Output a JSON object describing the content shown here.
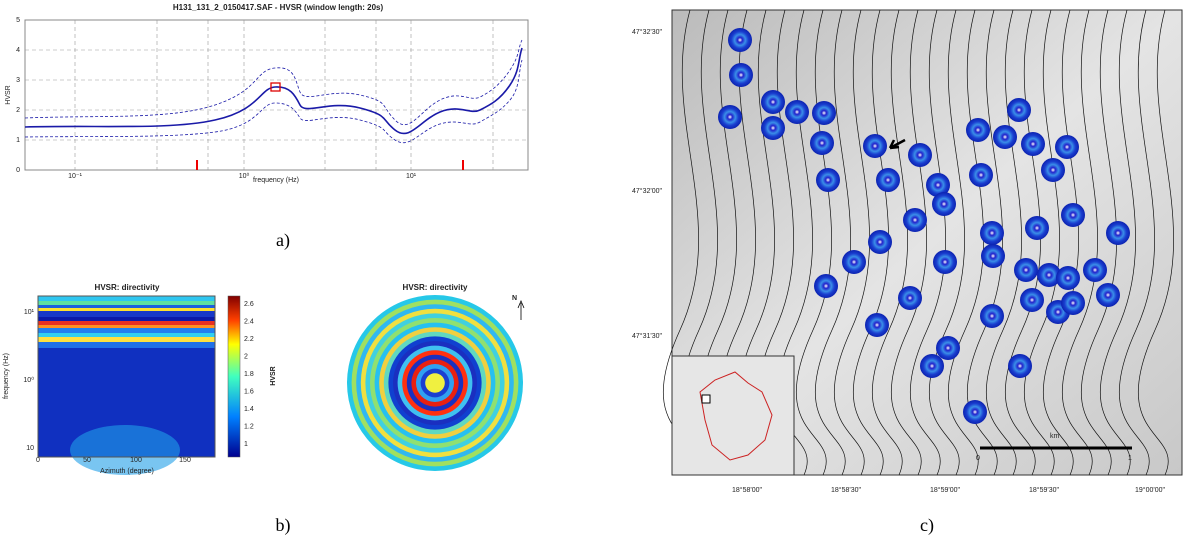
{
  "panel_a": {
    "title": "H131_131_2_0150417.SAF - HVSR (window length: 20s)",
    "y_axis_label": "HVSR",
    "x_axis_label": "frequency (Hz)",
    "y_tick_labels": [
      "0",
      "1",
      "2",
      "3",
      "4",
      "5"
    ],
    "x_tick_labels": [
      "10⁻¹",
      "10⁰",
      "10¹"
    ],
    "caption": "a)"
  },
  "panel_b": {
    "heatmap": {
      "title": "HVSR: directivity",
      "y_axis_label": "frequency (Hz)",
      "x_axis_label": "Azimuth (degree)",
      "x_tick_labels": [
        "0",
        "50",
        "100",
        "150"
      ],
      "y_tick_labels": [
        "10¹",
        "10⁰",
        "10"
      ],
      "colorbar_label": "HVSR",
      "colorbar_tick_labels": [
        "2.6",
        "2.4",
        "2.2",
        "2",
        "1.8",
        "1.6",
        "1.4",
        "1.2",
        "1"
      ]
    },
    "polar": {
      "title": "HVSR: directivity",
      "north": "N"
    },
    "caption": "b)"
  },
  "panel_c": {
    "lat_labels": [
      "47°32'30\"",
      "47°32'00\"",
      "47°31'30\""
    ],
    "lon_labels": [
      "18°58'00\"",
      "18°58'30\"",
      "18°59'00\"",
      "18°59'30\"",
      "19°00'00\""
    ],
    "scale_unit": "km",
    "scale_labels": [
      "0",
      "1"
    ],
    "caption": "c)"
  }
}
